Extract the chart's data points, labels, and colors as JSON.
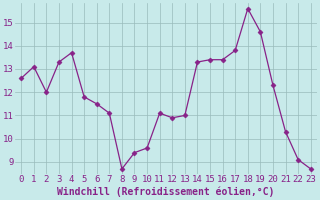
{
  "hours": [
    0,
    1,
    2,
    3,
    4,
    5,
    6,
    7,
    8,
    9,
    10,
    11,
    12,
    13,
    14,
    15,
    16,
    17,
    18,
    19,
    20,
    21,
    22,
    23
  ],
  "values": [
    12.6,
    13.1,
    12.0,
    13.3,
    13.7,
    11.8,
    11.5,
    11.1,
    8.7,
    9.4,
    9.6,
    11.1,
    10.9,
    11.0,
    13.3,
    13.4,
    13.4,
    13.8,
    15.6,
    14.6,
    12.3,
    10.3,
    9.1,
    8.7
  ],
  "line_color": "#882288",
  "marker": "D",
  "marker_size": 2.5,
  "bg_color": "#c8eaea",
  "grid_color": "#99bbbb",
  "xlabel": "Windchill (Refroidissement éolien,°C)",
  "xlabel_fontsize": 7,
  "tick_fontsize": 6.5,
  "tick_color": "#882288",
  "ylim": [
    8.5,
    15.85
  ],
  "yticks": [
    9,
    10,
    11,
    12,
    13,
    14,
    15
  ],
  "xtick_labels": [
    "0",
    "1",
    "2",
    "3",
    "4",
    "5",
    "6",
    "7",
    "8",
    "9",
    "10",
    "11",
    "12",
    "13",
    "14",
    "15",
    "16",
    "17",
    "18",
    "19",
    "20",
    "21",
    "22",
    "23"
  ]
}
